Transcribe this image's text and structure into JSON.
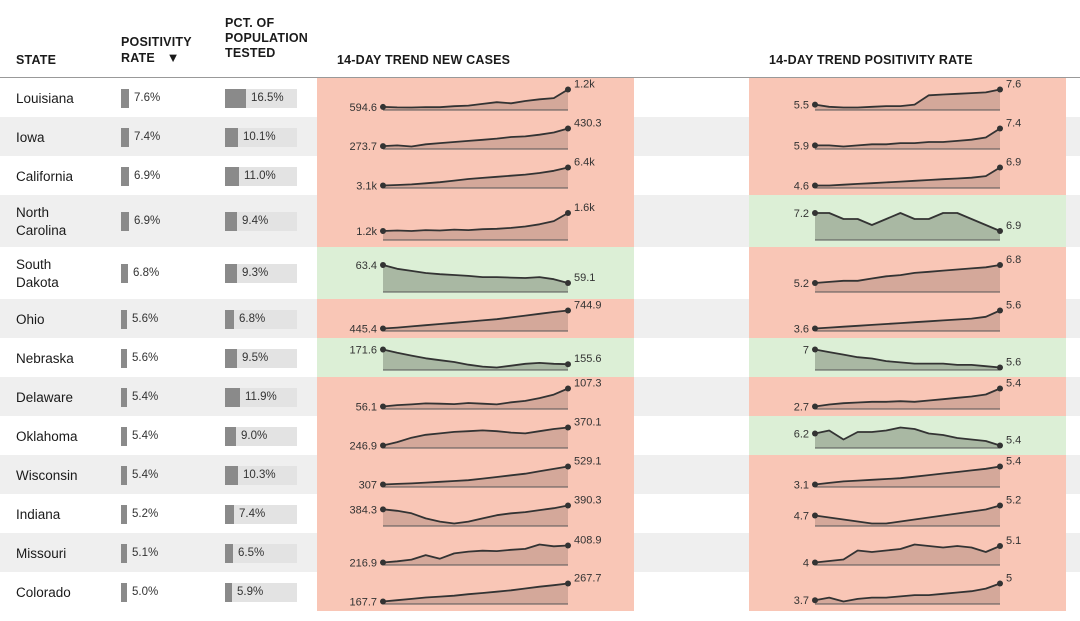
{
  "headers": {
    "state": "STATE",
    "positivity": [
      "POSITIVITY",
      "RATE"
    ],
    "sort_arrow": "▼",
    "tested": [
      "PCT. OF",
      "POPULATION",
      "TESTED"
    ],
    "cases_trend": "14-DAY TREND NEW CASES",
    "positivity_trend": "14-DAY TREND POSITIVITY RATE"
  },
  "colors": {
    "up_bg": "#f9c6b6",
    "down_bg": "#dcefd6",
    "up_area": "#d4a89a",
    "down_area": "#a9b8a3",
    "line": "#333333",
    "bar": "#8a8a8a",
    "bar_track": "#e3e3e3"
  },
  "chart_data": {
    "type": "table",
    "columns": [
      "STATE",
      "POSITIVITY RATE",
      "PCT. OF POPULATION TESTED",
      "14-DAY TREND NEW CASES",
      "14-DAY TREND POSITIVITY RATE"
    ],
    "rows": [
      {
        "state": [
          "Louisiana"
        ],
        "positivity": 7.6,
        "positivity_label": "7.6%",
        "tested": 16.5,
        "tested_label": "16.5%",
        "cases": {
          "start": "594.6",
          "end": "1.2k",
          "trend": "up",
          "values": [
            594.6,
            580,
            575,
            590,
            585,
            620,
            640,
            700,
            760,
            720,
            800,
            860,
            900,
            1200
          ]
        },
        "pos": {
          "start": "5.5",
          "end": "7.6",
          "trend": "up",
          "values": [
            5.5,
            5.2,
            5.1,
            5.1,
            5.2,
            5.3,
            5.3,
            5.5,
            6.8,
            6.9,
            7.0,
            7.1,
            7.2,
            7.6
          ]
        }
      },
      {
        "state": [
          "Iowa"
        ],
        "positivity": 7.4,
        "positivity_label": "7.4%",
        "tested": 10.1,
        "tested_label": "10.1%",
        "cases": {
          "start": "273.7",
          "end": "430.3",
          "trend": "up",
          "values": [
            273.7,
            280,
            270,
            290,
            300,
            310,
            320,
            330,
            340,
            355,
            360,
            375,
            395,
            430.3
          ]
        },
        "pos": {
          "start": "5.9",
          "end": "7.4",
          "trend": "up",
          "values": [
            5.9,
            5.9,
            5.8,
            5.9,
            6.0,
            6.0,
            6.1,
            6.1,
            6.2,
            6.2,
            6.3,
            6.4,
            6.6,
            7.4
          ]
        }
      },
      {
        "state": [
          "California"
        ],
        "positivity": 6.9,
        "positivity_label": "6.9%",
        "tested": 11.0,
        "tested_label": "11.0%",
        "cases": {
          "start": "3.1k",
          "end": "6.4k",
          "trend": "up",
          "values": [
            3100,
            3200,
            3300,
            3500,
            3700,
            4000,
            4300,
            4500,
            4700,
            4900,
            5100,
            5400,
            5800,
            6400
          ]
        },
        "pos": {
          "start": "4.6",
          "end": "6.9",
          "trend": "up",
          "values": [
            4.6,
            4.6,
            4.7,
            4.8,
            4.9,
            5.0,
            5.1,
            5.2,
            5.3,
            5.4,
            5.5,
            5.6,
            5.8,
            6.9
          ]
        }
      },
      {
        "state": [
          "North",
          "Carolina"
        ],
        "positivity": 6.9,
        "positivity_label": "6.9%",
        "tested": 9.4,
        "tested_label": "9.4%",
        "cases": {
          "start": "1.2k",
          "end": "1.6k",
          "trend": "up",
          "values": [
            1200,
            1210,
            1200,
            1220,
            1210,
            1230,
            1220,
            1240,
            1250,
            1270,
            1300,
            1350,
            1420,
            1600
          ]
        },
        "pos": {
          "start": "7.2",
          "end": "6.9",
          "trend": "down",
          "values": [
            7.2,
            7.2,
            7.1,
            7.1,
            7.0,
            7.1,
            7.2,
            7.1,
            7.1,
            7.2,
            7.2,
            7.1,
            7.0,
            6.9
          ]
        }
      },
      {
        "state": [
          "South",
          "Dakota"
        ],
        "positivity": 6.8,
        "positivity_label": "6.8%",
        "tested": 9.3,
        "tested_label": "9.3%",
        "cases": {
          "start": "63.4",
          "end": "59.1",
          "trend": "down",
          "values": [
            63.4,
            62.5,
            62,
            61.5,
            61.2,
            61,
            60.8,
            60.5,
            60.5,
            60.4,
            60.3,
            60.5,
            60,
            59.1
          ]
        },
        "pos": {
          "start": "5.2",
          "end": "6.8",
          "trend": "up",
          "values": [
            5.2,
            5.3,
            5.4,
            5.4,
            5.6,
            5.8,
            5.9,
            6.1,
            6.2,
            6.3,
            6.4,
            6.5,
            6.6,
            6.8
          ]
        }
      },
      {
        "state": [
          "Ohio"
        ],
        "positivity": 5.6,
        "positivity_label": "5.6%",
        "tested": 6.8,
        "tested_label": "6.8%",
        "cases": {
          "start": "445.4",
          "end": "744.9",
          "trend": "up",
          "values": [
            445.4,
            460,
            480,
            500,
            520,
            540,
            560,
            580,
            600,
            630,
            660,
            690,
            720,
            744.9
          ]
        },
        "pos": {
          "start": "3.6",
          "end": "5.6",
          "trend": "up",
          "values": [
            3.6,
            3.7,
            3.8,
            3.9,
            4.0,
            4.1,
            4.2,
            4.3,
            4.4,
            4.5,
            4.6,
            4.7,
            4.9,
            5.6
          ]
        }
      },
      {
        "state": [
          "Nebraska"
        ],
        "positivity": 5.6,
        "positivity_label": "5.6%",
        "tested": 9.5,
        "tested_label": "9.5%",
        "cases": {
          "start": "171.6",
          "end": "155.6",
          "trend": "down",
          "values": [
            171.6,
            168,
            165,
            162,
            160,
            158,
            155,
            153,
            152,
            154,
            156,
            157,
            156,
            155.6
          ]
        },
        "pos": {
          "start": "7",
          "end": "5.6",
          "trend": "down",
          "values": [
            7,
            6.8,
            6.6,
            6.4,
            6.3,
            6.1,
            6.0,
            5.9,
            5.9,
            5.9,
            5.8,
            5.8,
            5.7,
            5.6
          ]
        }
      },
      {
        "state": [
          "Delaware"
        ],
        "positivity": 5.4,
        "positivity_label": "5.4%",
        "tested": 11.9,
        "tested_label": "11.9%",
        "cases": {
          "start": "56.1",
          "end": "107.3",
          "trend": "up",
          "values": [
            56.1,
            60,
            62,
            65,
            64,
            63,
            66,
            64,
            62,
            68,
            72,
            80,
            90,
            107.3
          ]
        },
        "pos": {
          "start": "2.7",
          "end": "5.4",
          "trend": "up",
          "values": [
            2.7,
            3.0,
            3.2,
            3.3,
            3.4,
            3.4,
            3.5,
            3.4,
            3.6,
            3.8,
            4.0,
            4.2,
            4.5,
            5.4
          ]
        }
      },
      {
        "state": [
          "Oklahoma"
        ],
        "positivity": 5.4,
        "positivity_label": "5.4%",
        "tested": 9.0,
        "tested_label": "9.0%",
        "cases": {
          "start": "246.9",
          "end": "370.1",
          "trend": "up",
          "values": [
            246.9,
            270,
            300,
            320,
            330,
            340,
            345,
            350,
            345,
            335,
            330,
            345,
            360,
            370.1
          ]
        },
        "pos": {
          "start": "6.2",
          "end": "5.4",
          "trend": "down",
          "values": [
            6.2,
            6.4,
            5.8,
            6.3,
            6.3,
            6.4,
            6.6,
            6.5,
            6.2,
            6.1,
            5.9,
            5.8,
            5.7,
            5.4
          ]
        }
      },
      {
        "state": [
          "Wisconsin"
        ],
        "positivity": 5.4,
        "positivity_label": "5.4%",
        "tested": 10.3,
        "tested_label": "10.3%",
        "cases": {
          "start": "307",
          "end": "529.1",
          "trend": "up",
          "values": [
            307,
            315,
            320,
            330,
            340,
            350,
            360,
            380,
            400,
            420,
            440,
            470,
            500,
            529.1
          ]
        },
        "pos": {
          "start": "3.1",
          "end": "5.4",
          "trend": "up",
          "values": [
            3.1,
            3.3,
            3.5,
            3.6,
            3.7,
            3.8,
            3.9,
            4.1,
            4.3,
            4.5,
            4.7,
            4.9,
            5.1,
            5.4
          ]
        }
      },
      {
        "state": [
          "Indiana"
        ],
        "positivity": 5.2,
        "positivity_label": "5.2%",
        "tested": 7.4,
        "tested_label": "7.4%",
        "cases": {
          "start": "384.3",
          "end": "390.3",
          "trend": "up",
          "values": [
            384.3,
            382,
            378,
            370,
            365,
            362,
            365,
            370,
            375,
            378,
            380,
            383,
            386,
            390.3
          ]
        },
        "pos": {
          "start": "4.7",
          "end": "5.2",
          "trend": "up",
          "values": [
            4.7,
            4.6,
            4.5,
            4.4,
            4.3,
            4.3,
            4.4,
            4.5,
            4.6,
            4.7,
            4.8,
            4.9,
            5.0,
            5.2
          ]
        }
      },
      {
        "state": [
          "Missouri"
        ],
        "positivity": 5.1,
        "positivity_label": "5.1%",
        "tested": 6.5,
        "tested_label": "6.5%",
        "cases": {
          "start": "216.9",
          "end": "408.9",
          "trend": "up",
          "values": [
            216.9,
            230,
            250,
            300,
            260,
            320,
            340,
            350,
            345,
            360,
            370,
            420,
            400,
            408.9
          ]
        },
        "pos": {
          "start": "4",
          "end": "5.1",
          "trend": "up",
          "values": [
            4,
            4.1,
            4.2,
            4.8,
            4.7,
            4.8,
            4.9,
            5.2,
            5.1,
            5.0,
            5.1,
            5.0,
            4.7,
            5.1
          ]
        }
      },
      {
        "state": [
          "Colorado"
        ],
        "positivity": 5.0,
        "positivity_label": "5.0%",
        "tested": 5.9,
        "tested_label": "5.9%",
        "cases": {
          "start": "167.7",
          "end": "267.7",
          "trend": "up",
          "values": [
            167.7,
            175,
            182,
            190,
            195,
            200,
            208,
            215,
            222,
            230,
            240,
            250,
            258,
            267.7
          ]
        },
        "pos": {
          "start": "3.7",
          "end": "5",
          "trend": "up",
          "values": [
            3.7,
            3.9,
            3.6,
            3.8,
            3.9,
            3.9,
            4.0,
            4.1,
            4.1,
            4.2,
            4.3,
            4.4,
            4.6,
            5
          ]
        }
      }
    ]
  }
}
